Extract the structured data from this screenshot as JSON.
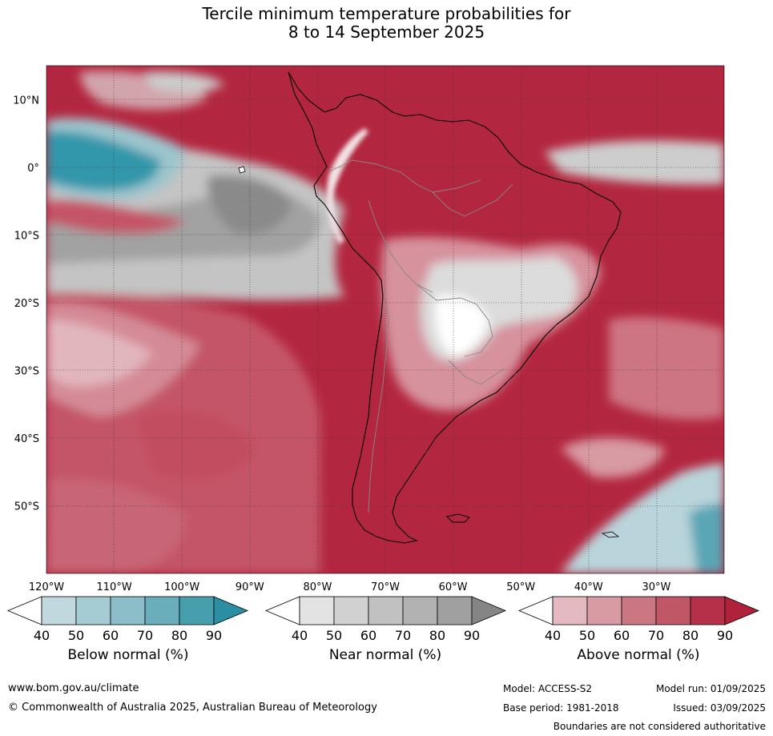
{
  "title": {
    "line1": "Tercile minimum temperature probabilities for",
    "line2": "8 to 14 September 2025"
  },
  "map": {
    "lon_ticks": [
      "120°W",
      "110°W",
      "100°W",
      "90°W",
      "80°W",
      "70°W",
      "60°W",
      "50°W",
      "40°W",
      "30°W"
    ],
    "lat_ticks": [
      "10°N",
      "0°",
      "10°S",
      "20°S",
      "30°S",
      "40°S",
      "50°S"
    ],
    "lon_range": [
      -120,
      -20
    ],
    "lat_range": [
      -60,
      15
    ]
  },
  "legend": {
    "ticks": [
      "40",
      "50",
      "60",
      "70",
      "80",
      "90"
    ],
    "below": {
      "label": "Below normal (%)",
      "colors": [
        "#ffffff",
        "#c0d8de",
        "#a6ccd3",
        "#8bbec8",
        "#6aaebb",
        "#479fae",
        "#2b8ea3"
      ]
    },
    "near": {
      "label": "Near normal (%)",
      "colors": [
        "#ffffff",
        "#e3e3e3",
        "#d1d1d1",
        "#c1c1c1",
        "#b2b2b2",
        "#a0a0a0",
        "#858585"
      ]
    },
    "above": {
      "label": "Above normal (%)",
      "colors": [
        "#ffffff",
        "#e4bac0",
        "#d89aa3",
        "#cb7783",
        "#bf5766",
        "#b53048",
        "#b0223b"
      ]
    }
  },
  "footer": {
    "website": "www.bom.gov.au/climate",
    "copyright": "© Commonwealth of Australia 2025, Australian Bureau of Meteorology",
    "model": "Model: ACCESS-S2",
    "base_period": "Base period: 1981-2018",
    "model_run": "Model run: 01/09/2025",
    "issued": "Issued: 03/09/2025",
    "boundaries": "Boundaries are not considered authoritative"
  }
}
